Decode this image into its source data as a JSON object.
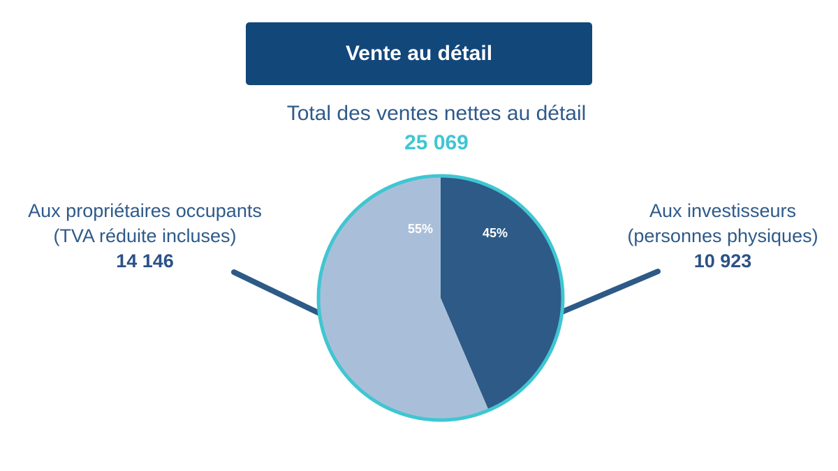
{
  "header": {
    "title": "Vente au détail"
  },
  "total": {
    "label": "Total des ventes nettes au détail",
    "value": "25 069"
  },
  "segments": {
    "left": {
      "line1": "Aux propriétaires occupants",
      "line2": "(TVA réduite incluses)",
      "value": "14 146"
    },
    "right": {
      "line1": "Aux investisseurs",
      "line2": "(personnes physiques)",
      "value": "10 923"
    }
  },
  "colors": {
    "title_bg": "#12477a",
    "accent": "#3fc6d2",
    "investors": "#2d5a87",
    "owners": "#a9bfd9",
    "text": "#2e5a8a"
  },
  "chart_data": {
    "type": "pie",
    "labels": [
      "Aux investisseurs (personnes physiques)",
      "Aux propriétaires occupants (TVA réduite incluses)"
    ],
    "values": [
      10923,
      14146
    ],
    "percent_labels": [
      "45%",
      "55%"
    ]
  }
}
